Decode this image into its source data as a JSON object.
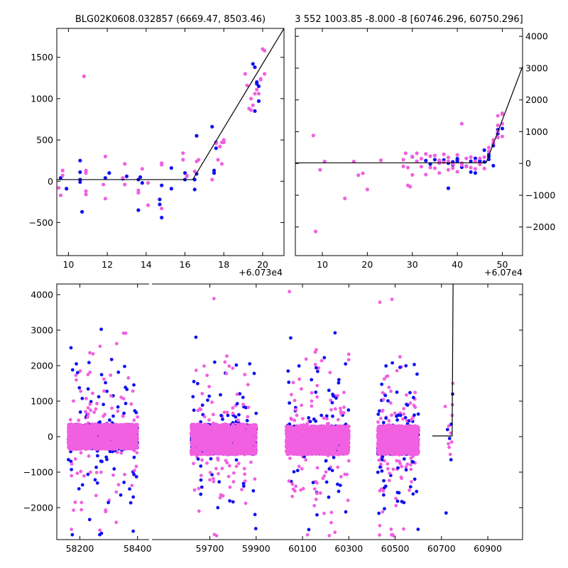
{
  "colors": {
    "series_a": "#1010f0",
    "series_b": "#f060e0",
    "model_line": "#000000",
    "axes": "#000000",
    "background": "#ffffff"
  },
  "chart_data": [
    {
      "id": "top_left",
      "type": "scatter",
      "title": "BLG02K0608.032857 (6669.47, 8503.46)",
      "x_offset_label": "+6.073e4",
      "xlim": [
        9.4,
        21.1
      ],
      "ylim": [
        -900,
        1850
      ],
      "x_ticks": [
        10,
        12,
        14,
        16,
        18,
        20
      ],
      "x_tick_labels": [
        "10",
        "12",
        "14",
        "16",
        "18",
        "20"
      ],
      "y_ticks": [
        -500,
        0,
        500,
        1000,
        1500
      ],
      "y_tick_labels": [
        "−500",
        "0",
        "500",
        "1000",
        "1500"
      ],
      "y_axis_side": "left",
      "model_line": [
        [
          9.4,
          20
        ],
        [
          16.4,
          20
        ],
        [
          21.1,
          1850
        ]
      ],
      "series": [
        {
          "color_key": "series_a",
          "points": [
            [
              9.6,
              40
            ],
            [
              9.9,
              -90
            ],
            [
              10.6,
              250
            ],
            [
              10.6,
              110
            ],
            [
              10.6,
              -10
            ],
            [
              10.6,
              20
            ],
            [
              10.7,
              -370
            ],
            [
              11.9,
              40
            ],
            [
              12.1,
              100
            ],
            [
              12.8,
              30
            ],
            [
              13.0,
              60
            ],
            [
              13.6,
              -350
            ],
            [
              13.6,
              20
            ],
            [
              13.7,
              50
            ],
            [
              13.8,
              -20
            ],
            [
              14.7,
              -220
            ],
            [
              14.7,
              -280
            ],
            [
              14.8,
              -440
            ],
            [
              14.8,
              -50
            ],
            [
              15.3,
              -90
            ],
            [
              15.3,
              160
            ],
            [
              16.0,
              20
            ],
            [
              16.0,
              100
            ],
            [
              16.5,
              -100
            ],
            [
              16.5,
              20
            ],
            [
              16.6,
              90
            ],
            [
              16.6,
              550
            ],
            [
              17.4,
              660
            ],
            [
              17.5,
              130
            ],
            [
              17.5,
              100
            ],
            [
              17.6,
              470
            ],
            [
              17.6,
              400
            ],
            [
              19.5,
              1420
            ],
            [
              19.6,
              1380
            ],
            [
              19.6,
              850
            ],
            [
              19.7,
              1200
            ],
            [
              19.7,
              1180
            ],
            [
              19.8,
              1150
            ],
            [
              19.8,
              970
            ]
          ]
        },
        {
          "color_key": "series_b",
          "points": [
            [
              9.5,
              -80
            ],
            [
              9.6,
              -170
            ],
            [
              9.7,
              130
            ],
            [
              9.7,
              70
            ],
            [
              10.8,
              1270
            ],
            [
              10.9,
              130
            ],
            [
              10.9,
              100
            ],
            [
              10.9,
              -120
            ],
            [
              10.9,
              -160
            ],
            [
              11.8,
              -40
            ],
            [
              11.9,
              300
            ],
            [
              11.9,
              -210
            ],
            [
              12.8,
              40
            ],
            [
              12.9,
              -40
            ],
            [
              12.9,
              210
            ],
            [
              13.6,
              -140
            ],
            [
              13.6,
              -110
            ],
            [
              13.8,
              150
            ],
            [
              14.1,
              -290
            ],
            [
              14.1,
              -20
            ],
            [
              14.8,
              -330
            ],
            [
              14.8,
              220
            ],
            [
              14.8,
              200
            ],
            [
              15.9,
              260
            ],
            [
              15.9,
              340
            ],
            [
              16.1,
              60
            ],
            [
              16.1,
              70
            ],
            [
              16.5,
              120
            ],
            [
              16.6,
              240
            ],
            [
              16.7,
              260
            ],
            [
              17.4,
              20
            ],
            [
              17.6,
              460
            ],
            [
              17.7,
              260
            ],
            [
              17.8,
              420
            ],
            [
              17.9,
              470
            ],
            [
              17.9,
              210
            ],
            [
              18.0,
              500
            ],
            [
              18.0,
              470
            ],
            [
              19.1,
              1300
            ],
            [
              19.2,
              1160
            ],
            [
              19.3,
              880
            ],
            [
              19.4,
              1000
            ],
            [
              19.4,
              860
            ],
            [
              19.5,
              920
            ],
            [
              19.6,
              1060
            ],
            [
              19.7,
              1110
            ],
            [
              19.8,
              1060
            ],
            [
              19.9,
              1230
            ],
            [
              19.9,
              1240
            ],
            [
              20.0,
              1600
            ],
            [
              20.1,
              1580
            ],
            [
              20.1,
              1300
            ]
          ]
        }
      ]
    },
    {
      "id": "top_right",
      "type": "scatter",
      "title": "3 552 1003.85 -8.000 -8 [60746.296, 60750.296]",
      "x_offset_label": "+6.07e4",
      "xlim": [
        4,
        54.5
      ],
      "ylim": [
        -2900,
        4250
      ],
      "x_ticks": [
        10,
        20,
        30,
        40,
        50
      ],
      "x_tick_labels": [
        "10",
        "20",
        "30",
        "40",
        "50"
      ],
      "y_ticks": [
        -2000,
        -1000,
        0,
        1000,
        2000,
        3000,
        4000
      ],
      "y_tick_labels": [
        "−2000",
        "−1000",
        "0",
        "1000",
        "2000",
        "3000",
        "4000"
      ],
      "y_axis_side": "right",
      "model_line": [
        [
          4,
          20
        ],
        [
          46.4,
          20
        ],
        [
          54.5,
          3050
        ]
      ],
      "series": [
        {
          "color_key": "series_a",
          "points": [
            [
              30,
              210
            ],
            [
              33,
              90
            ],
            [
              34,
              -20
            ],
            [
              35,
              120
            ],
            [
              36,
              40
            ],
            [
              37,
              110
            ],
            [
              38,
              -780
            ],
            [
              38,
              10
            ],
            [
              39,
              -50
            ],
            [
              39,
              50
            ],
            [
              40,
              100
            ],
            [
              40,
              150
            ],
            [
              40,
              60
            ],
            [
              41,
              -120
            ],
            [
              42,
              -90
            ],
            [
              43,
              -270
            ],
            [
              43,
              70
            ],
            [
              44,
              -300
            ],
            [
              44,
              160
            ],
            [
              45,
              90
            ],
            [
              45,
              70
            ],
            [
              46,
              50
            ],
            [
              46,
              420
            ],
            [
              47,
              220
            ],
            [
              47,
              130
            ],
            [
              47,
              280
            ],
            [
              48,
              620
            ],
            [
              48,
              560
            ],
            [
              48,
              -70
            ],
            [
              49,
              1060
            ],
            [
              49,
              940
            ],
            [
              49,
              820
            ],
            [
              50,
              1100
            ]
          ]
        },
        {
          "color_key": "series_b",
          "points": [
            [
              8,
              880
            ],
            [
              8.5,
              -2140
            ],
            [
              9.5,
              -200
            ],
            [
              10.5,
              60
            ],
            [
              15,
              -1100
            ],
            [
              17,
              60
            ],
            [
              18,
              -370
            ],
            [
              19,
              -310
            ],
            [
              20,
              -820
            ],
            [
              23,
              100
            ],
            [
              28,
              -90
            ],
            [
              28,
              120
            ],
            [
              28.5,
              320
            ],
            [
              29,
              -130
            ],
            [
              29,
              -690
            ],
            [
              29.5,
              -730
            ],
            [
              30,
              220
            ],
            [
              30,
              -360
            ],
            [
              31,
              320
            ],
            [
              31,
              70
            ],
            [
              32,
              -100
            ],
            [
              32,
              150
            ],
            [
              33,
              -350
            ],
            [
              33,
              300
            ],
            [
              34,
              230
            ],
            [
              34,
              -130
            ],
            [
              35,
              250
            ],
            [
              35,
              -150
            ],
            [
              36,
              10
            ],
            [
              36,
              100
            ],
            [
              36,
              -300
            ],
            [
              37,
              290
            ],
            [
              37,
              40
            ],
            [
              38,
              -200
            ],
            [
              38,
              70
            ],
            [
              38,
              190
            ],
            [
              39,
              -150
            ],
            [
              39,
              -20
            ],
            [
              40,
              -260
            ],
            [
              40,
              270
            ],
            [
              41,
              1250
            ],
            [
              41,
              -50
            ],
            [
              41,
              10
            ],
            [
              42,
              -100
            ],
            [
              42,
              160
            ],
            [
              43,
              -130
            ],
            [
              43,
              200
            ],
            [
              44,
              70
            ],
            [
              44,
              -170
            ],
            [
              45,
              160
            ],
            [
              45,
              -30
            ],
            [
              46,
              200
            ],
            [
              46,
              -160
            ],
            [
              47,
              500
            ],
            [
              47,
              380
            ],
            [
              48,
              740
            ],
            [
              48,
              640
            ],
            [
              49,
              1000
            ],
            [
              49,
              820
            ],
            [
              49,
              1500
            ],
            [
              50,
              1250
            ],
            [
              50,
              1550
            ],
            [
              50,
              1580
            ],
            [
              50,
              850
            ],
            [
              49,
              1200
            ]
          ]
        }
      ]
    },
    {
      "id": "bottom",
      "type": "scatter",
      "title": "",
      "x_segments": [
        {
          "xlim": [
            58120,
            58440
          ],
          "x_ticks": [
            58200,
            58400
          ],
          "x_tick_labels": [
            "58200",
            "58400"
          ]
        },
        {
          "xlim": [
            59450,
            61050
          ],
          "x_ticks": [
            59700,
            59900,
            60100,
            60300,
            60500,
            60700,
            60900
          ],
          "x_tick_labels": [
            "59700",
            "59900",
            "60100",
            "60300",
            "60500",
            "60700",
            "60900"
          ]
        }
      ],
      "ylim": [
        -2900,
        4300
      ],
      "y_ticks": [
        -2000,
        -1000,
        0,
        1000,
        2000,
        3000,
        4000
      ],
      "y_tick_labels": [
        "−2000",
        "−1000",
        "0",
        "1000",
        "2000",
        "3000",
        "4000"
      ],
      "y_axis_side": "left",
      "model_line": [
        [
          60660,
          20
        ],
        [
          60746,
          20
        ],
        [
          60750,
          4300
        ]
      ],
      "season_clusters": [
        {
          "x_range": [
            58160,
            58400
          ],
          "y_band": [
            -350,
            350
          ],
          "y_spread": [
            -2800,
            3900
          ],
          "ymean": 50
        },
        {
          "x_range": [
            59620,
            59900
          ],
          "y_band": [
            -500,
            350
          ],
          "y_spread": [
            -2800,
            4100
          ],
          "ymean": -80
        },
        {
          "x_range": [
            60030,
            60300
          ],
          "y_band": [
            -500,
            300
          ],
          "y_spread": [
            -2800,
            4200
          ],
          "ymean": -100
        },
        {
          "x_range": [
            60425,
            60600
          ],
          "y_band": [
            -500,
            300
          ],
          "y_spread": [
            -2800,
            3900
          ],
          "ymean": -100
        }
      ],
      "late_points": [
        [
          60726,
          200
        ],
        [
          60730,
          -200
        ],
        [
          60732,
          300
        ],
        [
          60735,
          -50
        ],
        [
          60738,
          -500
        ],
        [
          60740,
          100
        ],
        [
          60742,
          350
        ],
        [
          60744,
          -150
        ],
        [
          60746,
          600
        ],
        [
          60748,
          1200
        ],
        [
          60749,
          1500
        ],
        [
          60747,
          900
        ],
        [
          60720,
          -2150
        ],
        [
          60716,
          850
        ],
        [
          60733,
          -300
        ],
        [
          60741,
          -650
        ]
      ]
    }
  ]
}
